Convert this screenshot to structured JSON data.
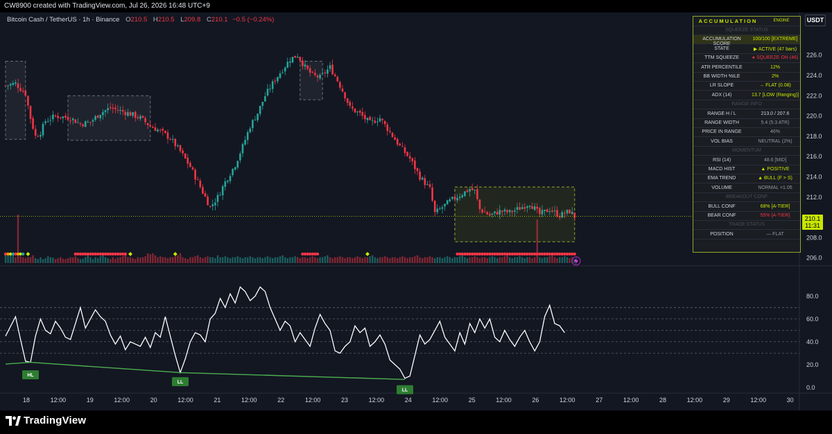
{
  "header": {
    "created_text": "CW8900 created with TradingView.com, Jul 26, 2026 16:48 UTC+9"
  },
  "symbol": {
    "name": "Bitcoin Cash / TetherUS · 1h · Binance",
    "o_label": "O",
    "o_value": "210.5",
    "h_label": "H",
    "h_value": "210.5",
    "l_label": "L",
    "l_value": "209.8",
    "c_label": "C",
    "c_value": "210.1",
    "change": "−0.5 (−0.24%)"
  },
  "currency_button": "USDT",
  "last_price": {
    "price": "210.1",
    "countdown": "11:31"
  },
  "panel": {
    "title": "ACCUMULATION",
    "subtitle": "ENGINE",
    "rows": [
      {
        "k": "SQUEEZE STATUS",
        "v": "",
        "section": true
      },
      {
        "k": "ACCUMULATION SCORE",
        "v": "100/100  [EXTREME]",
        "color": "#c8e600",
        "hl": true
      },
      {
        "k": "STATE",
        "v": "▶ ACTIVE (47 bars)",
        "color": "#c8e600"
      },
      {
        "k": "TTM SQUEEZE",
        "v": "● SQUEEZE ON (46)",
        "color": "#f23645"
      },
      {
        "k": "ATR PERCENTILE",
        "v": "12%",
        "color": "#c8e600"
      },
      {
        "k": "BB WIDTH %ILE",
        "v": "2%",
        "color": "#c8e600"
      },
      {
        "k": "LR SLOPE",
        "v": "→ FLAT  (0.08)",
        "color": "#c8e600"
      },
      {
        "k": "ADX (14)",
        "v": "13.7  [LOW (Ranging)]",
        "color": "#c8e600"
      },
      {
        "k": "RANGE INFO",
        "v": "",
        "section": true
      },
      {
        "k": "RANGE H / L",
        "v": "213.0 / 207.6",
        "color": "#d1d4dc"
      },
      {
        "k": "RANGE WIDTH",
        "v": "5.4  (5.3 ATR)",
        "color": "#9598a1"
      },
      {
        "k": "PRICE IN RANGE",
        "v": "46%",
        "color": "#9598a1"
      },
      {
        "k": "VOL BIAS",
        "v": "NEUTRAL  (2%)",
        "color": "#9598a1"
      },
      {
        "k": "MOMENTUM",
        "v": "",
        "section": true
      },
      {
        "k": "RSI (14)",
        "v": "48.6  [MID]",
        "color": "#9598a1"
      },
      {
        "k": "MACD HIST",
        "v": "▲ POSITIVE",
        "color": "#c8e600"
      },
      {
        "k": "EMA TREND",
        "v": "▲ BULL (F > S)",
        "color": "#c8e600"
      },
      {
        "k": "VOLUME",
        "v": "NORMAL  ×1.05",
        "color": "#9598a1"
      },
      {
        "k": "BREAKOUT CONF",
        "v": "",
        "section": true
      },
      {
        "k": "BULL CONF",
        "v": "68%  [A-TIER]",
        "color": "#c8e600"
      },
      {
        "k": "BEAR CONF",
        "v": "55%  [A-TIER]",
        "color": "#f23645"
      },
      {
        "k": "TRADE STATUS",
        "v": "",
        "section": true
      },
      {
        "k": "POSITION",
        "v": "— FLAT",
        "color": "#9598a1"
      }
    ]
  },
  "chart_data": [
    {
      "type": "candlestick",
      "title": "Bitcoin Cash / TetherUS · 1h · Binance",
      "y_ticks": [
        226.0,
        224.0,
        222.0,
        220.0,
        218.0,
        216.0,
        214.0,
        212.0,
        210.0,
        208.0,
        206.0
      ],
      "ylim": [
        205.5,
        227.0
      ],
      "x_ticks": [
        "18",
        "12:00",
        "19",
        "12:00",
        "20",
        "12:00",
        "21",
        "12:00",
        "22",
        "12:00",
        "23",
        "12:00",
        "24",
        "12:00",
        "25",
        "12:00",
        "26",
        "12:00",
        "27",
        "12:00",
        "28",
        "12:00",
        "29",
        "12:00",
        "30"
      ],
      "close_path": [
        [
          0,
          223.0
        ],
        [
          4,
          223.2
        ],
        [
          8,
          222.2
        ],
        [
          10,
          219.8
        ],
        [
          12,
          218.0
        ],
        [
          14,
          218.4
        ],
        [
          16,
          219.5
        ],
        [
          20,
          220.0
        ],
        [
          26,
          219.8
        ],
        [
          30,
          219.2
        ],
        [
          34,
          219.4
        ],
        [
          38,
          220.3
        ],
        [
          42,
          220.8
        ],
        [
          46,
          220.5
        ],
        [
          50,
          220.2
        ],
        [
          54,
          219.8
        ],
        [
          58,
          219.0
        ],
        [
          62,
          218.5
        ],
        [
          66,
          217.8
        ],
        [
          70,
          216.5
        ],
        [
          74,
          215.0
        ],
        [
          78,
          213.0
        ],
        [
          82,
          211.0
        ],
        [
          85,
          212.0
        ],
        [
          88,
          213.5
        ],
        [
          92,
          215.2
        ],
        [
          95,
          217.0
        ],
        [
          98,
          219.0
        ],
        [
          101,
          220.3
        ],
        [
          104,
          222.0
        ],
        [
          108,
          223.6
        ],
        [
          111,
          224.6
        ],
        [
          114,
          225.6
        ],
        [
          117,
          226.0
        ],
        [
          120,
          224.8
        ],
        [
          123,
          224.0
        ],
        [
          126,
          223.8
        ],
        [
          130,
          224.8
        ],
        [
          133,
          223.5
        ],
        [
          136,
          222.0
        ],
        [
          138,
          220.8
        ],
        [
          142,
          220.2
        ],
        [
          146,
          219.3
        ],
        [
          150,
          219.8
        ],
        [
          154,
          218.4
        ],
        [
          158,
          217.0
        ],
        [
          162,
          215.8
        ],
        [
          166,
          214.0
        ],
        [
          170,
          212.8
        ],
        [
          172,
          210.4
        ],
        [
          174,
          210.8
        ],
        [
          178,
          211.6
        ],
        [
          182,
          212.2
        ],
        [
          186,
          212.8
        ],
        [
          188,
          212.6
        ],
        [
          190,
          210.8
        ],
        [
          194,
          210.2
        ],
        [
          198,
          210.6
        ],
        [
          202,
          210.5
        ],
        [
          206,
          210.9
        ],
        [
          210,
          211.4
        ],
        [
          214,
          210.3
        ],
        [
          218,
          210.8
        ],
        [
          222,
          210.2
        ],
        [
          226,
          210.6
        ],
        [
          228,
          210.1
        ]
      ],
      "consolidation_boxes": [
        {
          "x0": 0,
          "x1": 8,
          "y0": 217.7,
          "y1": 225.4
        },
        {
          "x0": 25,
          "x1": 58,
          "y0": 217.6,
          "y1": 222.0
        },
        {
          "x0": 118,
          "x1": 127,
          "y0": 221.6,
          "y1": 225.4
        },
        {
          "x0": 180,
          "x1": 228,
          "y0": 207.6,
          "y1": 213.0
        }
      ],
      "volume_relative": [
        0.4,
        0.5,
        0.4,
        0.45,
        0.3,
        1.0,
        0.35,
        0.3,
        0.25,
        0.3,
        0.3,
        0.4,
        0.25,
        0.2,
        0.3,
        0.2,
        0.25,
        0.35,
        0.3,
        0.28,
        0.2,
        0.25,
        0.3,
        0.22,
        0.2,
        0.25,
        0.3,
        0.28,
        0.35,
        0.25,
        0.2,
        0.22,
        0.3,
        0.5,
        0.3,
        0.2,
        0.3,
        0.25,
        0.35,
        0.4,
        0.3,
        0.25,
        0.2,
        0.3,
        0.22,
        0.28,
        0.3,
        0.35,
        0.4,
        0.3,
        0.3,
        0.25,
        0.2,
        0.3,
        0.28,
        0.3,
        0.35,
        0.5,
        0.45,
        0.5,
        0.4,
        0.3,
        0.35,
        0.3,
        0.3,
        0.25,
        0.3,
        0.3,
        0.35,
        0.4,
        0.5,
        0.3,
        0.25,
        0.2,
        0.3,
        0.3,
        0.35,
        0.4,
        0.3,
        0.25,
        0.3,
        0.35,
        0.3,
        0.3,
        0.25,
        0.4,
        0.3,
        0.3,
        0.35,
        0.3,
        0.25,
        0.3,
        0.3,
        0.35,
        0.3,
        0.25,
        0.3,
        0.3,
        0.35,
        0.3,
        0.25,
        0.3,
        0.3,
        0.25,
        0.3,
        0.35,
        0.3,
        0.25,
        0.3,
        0.3,
        0.35,
        0.4,
        0.3,
        0.25,
        0.3,
        0.3,
        0.35,
        0.3,
        0.25,
        0.3,
        0.3,
        0.25,
        0.3,
        0.35,
        0.3,
        0.25,
        0.3,
        0.3,
        0.35,
        0.4,
        0.3,
        0.25,
        0.3,
        0.3,
        0.35,
        0.3,
        0.25,
        0.3,
        0.3,
        0.25,
        0.3,
        0.35,
        0.3,
        0.25,
        0.3,
        0.3,
        0.35,
        0.4,
        0.3,
        0.25,
        0.3,
        0.3,
        0.35,
        0.3,
        0.25,
        0.3,
        0.3,
        0.25,
        0.3,
        0.35,
        0.3,
        0.25,
        0.3,
        0.3,
        0.35,
        0.4,
        0.3,
        0.25,
        0.3,
        0.3,
        0.35,
        0.3,
        0.25,
        0.3,
        0.3,
        0.25,
        0.3,
        0.35,
        0.3,
        0.25,
        0.3,
        0.3,
        0.35,
        0.4,
        0.3,
        0.25,
        0.3,
        0.3,
        0.35,
        0.3,
        0.25,
        0.3,
        0.3,
        0.25,
        0.3,
        0.35,
        0.3,
        0.25,
        0.3,
        0.3,
        0.35,
        0.4,
        0.3,
        0.25,
        0.3,
        0.3,
        0.35,
        0.3,
        0.25,
        0.3,
        0.3,
        0.25,
        0.3,
        0.9,
        0.3,
        0.25,
        0.3,
        0.3,
        0.35,
        0.4,
        0.3,
        0.25,
        0.3,
        0.3,
        0.35,
        0.3,
        0.25,
        0.3,
        0.2,
        0.25,
        0.3,
        0.35,
        0.6
      ],
      "squeeze_dots": [
        {
          "x0": 0,
          "x1": 7,
          "color": "mixed"
        },
        {
          "x0": 28,
          "x1": 48,
          "color": "#f23645"
        },
        {
          "x0": 119,
          "x1": 125,
          "color": "#f23645"
        },
        {
          "x0": 181,
          "x1": 228,
          "color": "#f23645"
        }
      ],
      "squeeze_release_dots": [
        9,
        50,
        68,
        145
      ]
    },
    {
      "type": "line",
      "series": [
        {
          "name": "RSI",
          "color": "#ffffff"
        }
      ],
      "y_ticks": [
        80.0,
        60.0,
        40.0,
        20.0,
        0.0
      ],
      "ylim": [
        -5,
        92
      ],
      "levels": [
        70,
        60,
        50,
        40,
        30
      ],
      "rsi_path": [
        [
          0,
          45
        ],
        [
          4,
          62
        ],
        [
          6,
          42
        ],
        [
          8,
          23
        ],
        [
          10,
          22
        ],
        [
          12,
          45
        ],
        [
          14,
          60
        ],
        [
          16,
          50
        ],
        [
          18,
          47
        ],
        [
          20,
          58
        ],
        [
          22,
          52
        ],
        [
          24,
          44
        ],
        [
          26,
          42
        ],
        [
          28,
          56
        ],
        [
          30,
          70
        ],
        [
          32,
          52
        ],
        [
          34,
          60
        ],
        [
          36,
          68
        ],
        [
          38,
          62
        ],
        [
          40,
          58
        ],
        [
          42,
          46
        ],
        [
          44,
          38
        ],
        [
          46,
          45
        ],
        [
          48,
          33
        ],
        [
          50,
          40
        ],
        [
          52,
          38
        ],
        [
          54,
          36
        ],
        [
          56,
          44
        ],
        [
          58,
          35
        ],
        [
          60,
          48
        ],
        [
          62,
          44
        ],
        [
          64,
          62
        ],
        [
          66,
          45
        ],
        [
          68,
          28
        ],
        [
          70,
          13
        ],
        [
          72,
          25
        ],
        [
          74,
          40
        ],
        [
          76,
          48
        ],
        [
          78,
          46
        ],
        [
          80,
          40
        ],
        [
          82,
          60
        ],
        [
          84,
          65
        ],
        [
          86,
          78
        ],
        [
          88,
          70
        ],
        [
          90,
          82
        ],
        [
          92,
          74
        ],
        [
          94,
          88
        ],
        [
          96,
          84
        ],
        [
          98,
          76
        ],
        [
          100,
          80
        ],
        [
          102,
          88
        ],
        [
          104,
          84
        ],
        [
          106,
          70
        ],
        [
          108,
          60
        ],
        [
          110,
          50
        ],
        [
          112,
          58
        ],
        [
          114,
          54
        ],
        [
          116,
          40
        ],
        [
          118,
          48
        ],
        [
          120,
          42
        ],
        [
          122,
          36
        ],
        [
          124,
          52
        ],
        [
          126,
          64
        ],
        [
          128,
          56
        ],
        [
          130,
          50
        ],
        [
          132,
          32
        ],
        [
          134,
          30
        ],
        [
          136,
          36
        ],
        [
          138,
          40
        ],
        [
          140,
          54
        ],
        [
          142,
          48
        ],
        [
          144,
          52
        ],
        [
          146,
          36
        ],
        [
          148,
          40
        ],
        [
          150,
          46
        ],
        [
          152,
          38
        ],
        [
          154,
          24
        ],
        [
          156,
          20
        ],
        [
          158,
          16
        ],
        [
          160,
          8
        ],
        [
          162,
          10
        ],
        [
          164,
          28
        ],
        [
          166,
          46
        ],
        [
          168,
          38
        ],
        [
          170,
          42
        ],
        [
          172,
          50
        ],
        [
          174,
          58
        ],
        [
          176,
          44
        ],
        [
          178,
          38
        ],
        [
          180,
          32
        ],
        [
          182,
          48
        ],
        [
          184,
          38
        ],
        [
          186,
          56
        ],
        [
          188,
          48
        ],
        [
          190,
          60
        ],
        [
          192,
          52
        ],
        [
          194,
          60
        ],
        [
          196,
          44
        ],
        [
          198,
          40
        ],
        [
          200,
          50
        ],
        [
          202,
          42
        ],
        [
          204,
          36
        ],
        [
          206,
          44
        ],
        [
          208,
          50
        ],
        [
          210,
          40
        ],
        [
          212,
          32
        ],
        [
          214,
          40
        ],
        [
          216,
          62
        ],
        [
          218,
          72
        ],
        [
          220,
          56
        ],
        [
          222,
          54
        ],
        [
          224,
          48
        ]
      ],
      "divergence_line": [
        [
          0,
          20.5
        ],
        [
          10,
          22
        ],
        [
          70,
          13
        ],
        [
          160,
          7
        ]
      ],
      "swing_labels": [
        {
          "text": "HL",
          "x": 10,
          "y": 15
        },
        {
          "text": "LL",
          "x": 70,
          "y": 9
        },
        {
          "text": "LL",
          "x": 160,
          "y": 2
        }
      ]
    }
  ],
  "footer": {
    "brand": "TradingView"
  },
  "colors": {
    "up": "#26a69a",
    "down": "#f23645",
    "accent": "#c8e600",
    "background": "#131722"
  },
  "icons": {
    "replay": "lightning-icon"
  }
}
